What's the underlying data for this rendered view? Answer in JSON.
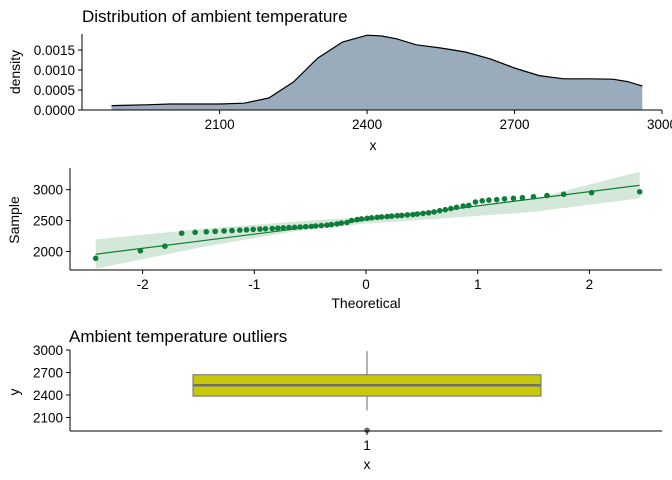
{
  "chart_data": [
    {
      "type": "area",
      "title": "Distribution of ambient temperature",
      "xlabel": "x",
      "ylabel": "density",
      "xlim": [
        1820,
        3000
      ],
      "ylim": [
        0,
        0.0019
      ],
      "x_ticks": [
        2100,
        2400,
        2700,
        3000
      ],
      "x_tick_labels": [
        "2100",
        "2400",
        "2700",
        "3000"
      ],
      "y_ticks": [
        0,
        0.0005,
        0.001,
        0.0015
      ],
      "y_tick_labels": [
        "0.0000",
        "0.0005",
        "0.0010",
        "0.0015"
      ],
      "fill_color": "#9aabbc",
      "series": [
        {
          "x": [
            1880,
            1950,
            2000,
            2050,
            2100,
            2150,
            2200,
            2250,
            2300,
            2350,
            2400,
            2430,
            2460,
            2500,
            2550,
            2600,
            2650,
            2700,
            2750,
            2800,
            2850,
            2900,
            2930,
            2960
          ],
          "values": [
            0.00011,
            0.00013,
            0.00015,
            0.00015,
            0.00015,
            0.00017,
            0.0003,
            0.0007,
            0.0013,
            0.0017,
            0.00187,
            0.00185,
            0.00178,
            0.00163,
            0.00155,
            0.00145,
            0.00128,
            0.00105,
            0.00086,
            0.00078,
            0.00078,
            0.00077,
            0.00071,
            0.0006
          ]
        }
      ]
    },
    {
      "type": "scatter",
      "title": "",
      "xlabel": "Theoretical",
      "ylabel": "Sample",
      "xlim": [
        -2.65,
        2.65
      ],
      "ylim": [
        1700,
        3350
      ],
      "x_ticks": [
        -2,
        -1,
        0,
        1,
        2
      ],
      "x_tick_labels": [
        "-2",
        "-1",
        "0",
        "1",
        "2"
      ],
      "y_ticks": [
        2000,
        2500,
        3000
      ],
      "y_tick_labels": [
        "2000",
        "2500",
        "3000"
      ],
      "point_color": "#0e7d3a",
      "band_color": "#d3e8d8",
      "line": {
        "x": [
          -2.42,
          2.45
        ],
        "y": [
          1955,
          3070
        ]
      },
      "band": {
        "x": [
          -2.42,
          -1.5,
          -0.5,
          0,
          0.5,
          1.5,
          2.45
        ],
        "upper": [
          2195,
          2360,
          2500,
          2555,
          2645,
          2850,
          3290
        ],
        "lower": [
          1720,
          2060,
          2370,
          2450,
          2510,
          2640,
          2860
        ]
      },
      "points": {
        "x": [
          -2.42,
          -2.02,
          -1.8,
          -1.65,
          -1.53,
          -1.43,
          -1.35,
          -1.27,
          -1.2,
          -1.13,
          -1.07,
          -1.01,
          -0.95,
          -0.9,
          -0.84,
          -0.79,
          -0.74,
          -0.69,
          -0.64,
          -0.59,
          -0.54,
          -0.49,
          -0.45,
          -0.4,
          -0.35,
          -0.31,
          -0.26,
          -0.22,
          -0.17,
          -0.13,
          -0.08,
          -0.04,
          0.01,
          0.05,
          0.1,
          0.14,
          0.19,
          0.23,
          0.28,
          0.32,
          0.37,
          0.42,
          0.46,
          0.51,
          0.56,
          0.61,
          0.66,
          0.71,
          0.76,
          0.81,
          0.87,
          0.92,
          0.98,
          1.04,
          1.1,
          1.17,
          1.24,
          1.32,
          1.4,
          1.5,
          1.62,
          1.77,
          2.02,
          2.45
        ],
        "y": [
          1890,
          2010,
          2085,
          2295,
          2310,
          2318,
          2325,
          2332,
          2338,
          2344,
          2350,
          2356,
          2361,
          2366,
          2371,
          2376,
          2381,
          2386,
          2391,
          2396,
          2401,
          2406,
          2411,
          2418,
          2425,
          2435,
          2446,
          2458,
          2468,
          2500,
          2515,
          2527,
          2536,
          2544,
          2552,
          2559,
          2566,
          2572,
          2578,
          2584,
          2591,
          2598,
          2606,
          2615,
          2625,
          2640,
          2660,
          2675,
          2695,
          2715,
          2735,
          2745,
          2800,
          2820,
          2830,
          2838,
          2850,
          2860,
          2870,
          2885,
          2905,
          2925,
          2950,
          2965
        ]
      }
    },
    {
      "type": "box",
      "title": "Ambient temperature outliers",
      "xlabel": "x",
      "ylabel": "y",
      "ylim": [
        1920,
        3000
      ],
      "y_ticks": [
        2100,
        2400,
        2700,
        3000
      ],
      "y_tick_labels": [
        "2100",
        "2400",
        "2700",
        "3000"
      ],
      "categories": [
        "1"
      ],
      "box_color": "#c8c80a",
      "box": {
        "q1": 2385,
        "median": 2530,
        "q3": 2670,
        "whisker_low": 2195,
        "whisker_high": 2985,
        "outliers": [
          1930
        ]
      }
    }
  ]
}
